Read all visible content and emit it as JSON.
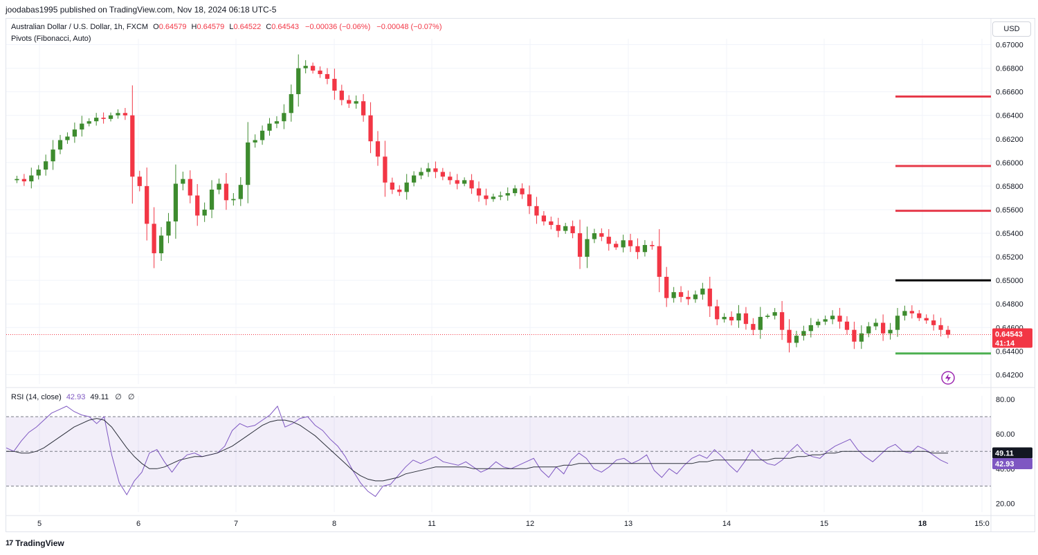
{
  "header": {
    "publish_line": "joodabas1995 published on TradingView.com, Nov 18, 2024 06:18 UTC-5"
  },
  "legend": {
    "symbol": "Australian Dollar / U.S. Dollar, 1h, FXCM",
    "o_label": "O",
    "o_value": "0.64579",
    "h_label": "H",
    "h_value": "0.64579",
    "l_label": "L",
    "l_value": "0.64522",
    "c_label": "C",
    "c_value": "0.64543",
    "change": "−0.00036 (−0.06%)",
    "change2": "−0.00048 (−0.07%)",
    "indicator": "Pivots (Fibonacci, Auto)"
  },
  "currency_button": "USD",
  "rsi_legend": {
    "label": "RSI (14, close)",
    "rsi_value": "42.93",
    "ma_value": "49.11",
    "n1": "∅",
    "n2": "∅"
  },
  "price_axis": [
    "0.67000",
    "0.66800",
    "0.66600",
    "0.66400",
    "0.66200",
    "0.66000",
    "0.65800",
    "0.65600",
    "0.65400",
    "0.65200",
    "0.65000",
    "0.64800",
    "0.64600",
    "0.64400",
    "0.64200"
  ],
  "rsi_axis": [
    "80.00",
    "60.00",
    "40.00",
    "20.00"
  ],
  "time_axis": [
    "5",
    "6",
    "7",
    "8",
    "11",
    "12",
    "13",
    "14",
    "15",
    "18",
    "15:0"
  ],
  "last_price": {
    "price": "0.64543",
    "countdown": "41:14"
  },
  "rsi_tags": {
    "ma": "49.11",
    "rsi": "42.93"
  },
  "branding": "TradingView",
  "colors": {
    "up": "#089981",
    "up_body": "#3d8b2e",
    "down": "#f23645",
    "rsi": "#7e57c2",
    "rsi_ma": "#2a2e39",
    "pivot_r": "#e63a4a",
    "pivot_p": "#000000",
    "pivot_s": "#4caf50",
    "band_fill": "#7e57c2"
  },
  "chart_data": {
    "type": "candlestick",
    "title": "Australian Dollar / U.S. Dollar, 1h, FXCM",
    "ylim": [
      0.6412,
      0.6705
    ],
    "pivots": {
      "R3": 0.6656,
      "R2": 0.6597,
      "R1": 0.6559,
      "P": 0.65,
      "S1": 0.6438
    },
    "price_path": [
      0.6585,
      0.6586,
      0.6584,
      0.6589,
      0.6594,
      0.6601,
      0.6611,
      0.6619,
      0.6622,
      0.6628,
      0.6633,
      0.6635,
      0.6638,
      0.6637,
      0.664,
      0.6642,
      0.664,
      0.6588,
      0.658,
      0.6548,
      0.6523,
      0.6538,
      0.655,
      0.6582,
      0.6586,
      0.6572,
      0.6555,
      0.656,
      0.6577,
      0.6582,
      0.6568,
      0.6569,
      0.6581,
      0.6617,
      0.6619,
      0.6627,
      0.6633,
      0.6635,
      0.6642,
      0.6658,
      0.668,
      0.6682,
      0.6678,
      0.6675,
      0.6671,
      0.6661,
      0.6653,
      0.665,
      0.6652,
      0.664,
      0.6618,
      0.6605,
      0.6583,
      0.6577,
      0.6575,
      0.6583,
      0.6589,
      0.6592,
      0.6595,
      0.6592,
      0.6588,
      0.6585,
      0.6582,
      0.6585,
      0.6578,
      0.6572,
      0.6569,
      0.6571,
      0.6572,
      0.6574,
      0.6578,
      0.6573,
      0.6563,
      0.6555,
      0.655,
      0.6547,
      0.6542,
      0.6546,
      0.654,
      0.652,
      0.6535,
      0.654,
      0.6537,
      0.6531,
      0.6528,
      0.6534,
      0.6529,
      0.6524,
      0.653,
      0.6529,
      0.6503,
      0.6485,
      0.649,
      0.6486,
      0.6484,
      0.6488,
      0.6493,
      0.6478,
      0.6467,
      0.6469,
      0.6466,
      0.6472,
      0.6463,
      0.6458,
      0.6469,
      0.647,
      0.6473,
      0.6458,
      0.6447,
      0.6453,
      0.6457,
      0.6462,
      0.6465,
      0.6467,
      0.647,
      0.6465,
      0.6458,
      0.6448,
      0.6455,
      0.6461,
      0.6464,
      0.6455,
      0.6458,
      0.647,
      0.6474,
      0.6472,
      0.6468,
      0.6466,
      0.6462,
      0.6458,
      0.6454
    ],
    "rsi": {
      "ylim": [
        15,
        82
      ],
      "upper": 70,
      "middle": 50,
      "lower": 30,
      "values": [
        52,
        50,
        56,
        61,
        64,
        68,
        72,
        74,
        76,
        73,
        71,
        70,
        66,
        70,
        48,
        32,
        25,
        33,
        38,
        49,
        51,
        44,
        38,
        44,
        48,
        49,
        47,
        48,
        49,
        53,
        62,
        66,
        64,
        65,
        68,
        71,
        76,
        64,
        66,
        69,
        70,
        65,
        62,
        57,
        53,
        47,
        39,
        32,
        27,
        24,
        30,
        31,
        36,
        41,
        45,
        43,
        45,
        47,
        44,
        43,
        42,
        44,
        41,
        38,
        40,
        44,
        41,
        40,
        42,
        44,
        46,
        39,
        35,
        41,
        37,
        45,
        49,
        46,
        40,
        38,
        41,
        45,
        46,
        43,
        45,
        48,
        39,
        35,
        40,
        37,
        42,
        46,
        48,
        46,
        51,
        47,
        42,
        38,
        44,
        51,
        46,
        43,
        42,
        45,
        50,
        54,
        49,
        47,
        46,
        50,
        53,
        55,
        57,
        51,
        47,
        44,
        48,
        52,
        54,
        50,
        49,
        53,
        51,
        48,
        45,
        43
      ],
      "ma": [
        50,
        50,
        49,
        49,
        50,
        52,
        55,
        58,
        61,
        64,
        66,
        68,
        69,
        68,
        64,
        58,
        52,
        47,
        43,
        40,
        40,
        41,
        43,
        45,
        46,
        47,
        47,
        48,
        49,
        51,
        53,
        56,
        59,
        62,
        65,
        67,
        68,
        68,
        67,
        65,
        62,
        59,
        55,
        51,
        47,
        43,
        39,
        36,
        34,
        33,
        33,
        34,
        35,
        37,
        38,
        39,
        40,
        41,
        41,
        41,
        41,
        41,
        40,
        40,
        40,
        40,
        40,
        40,
        40,
        40,
        41,
        41,
        41,
        41,
        42,
        42,
        43,
        43,
        43,
        43,
        43,
        43,
        43,
        43,
        43,
        43,
        43,
        43,
        43,
        43,
        43,
        43,
        44,
        44,
        45,
        45,
        45,
        45,
        45,
        45,
        45,
        45,
        46,
        46,
        46,
        47,
        47,
        48,
        48,
        49,
        49,
        50,
        50,
        50,
        50,
        50,
        50,
        50,
        50,
        50,
        50,
        50,
        50,
        49,
        49,
        49
      ]
    },
    "x_labels": [
      "5",
      "6",
      "7",
      "8",
      "11",
      "12",
      "13",
      "14",
      "15",
      "18",
      "15:0"
    ],
    "y_labels": [
      "0.67000",
      "0.66800",
      "0.66600",
      "0.66400",
      "0.66200",
      "0.66000",
      "0.65800",
      "0.65600",
      "0.65400",
      "0.65200",
      "0.65000",
      "0.64800",
      "0.64600",
      "0.64400",
      "0.64200"
    ]
  }
}
